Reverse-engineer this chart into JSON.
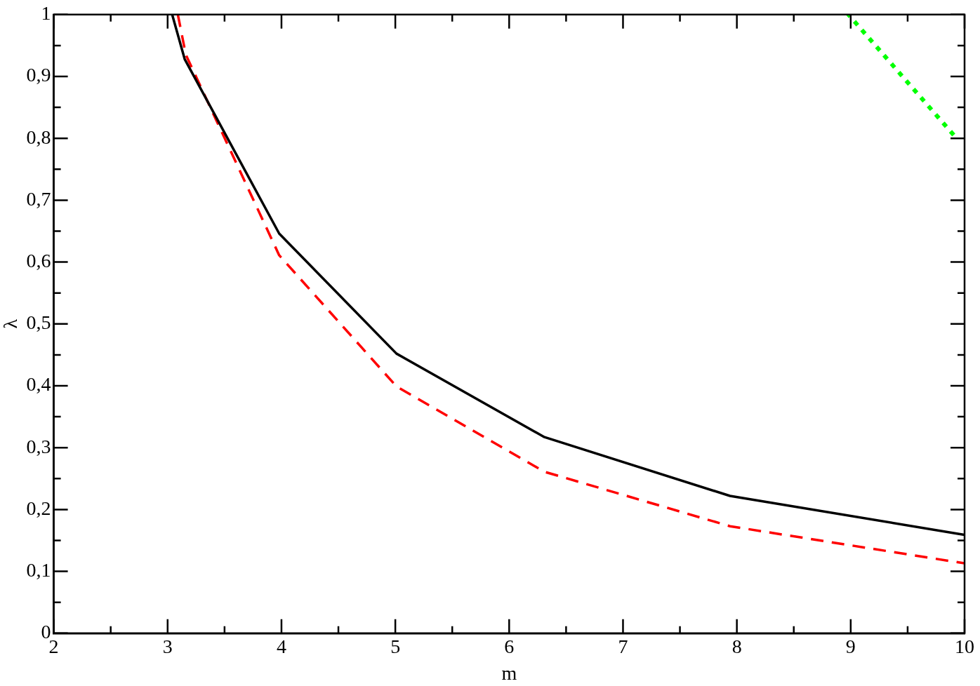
{
  "chart_data": {
    "type": "line",
    "xlabel": "m",
    "ylabel": "λ",
    "xlim": [
      2,
      10
    ],
    "ylim": [
      0,
      1
    ],
    "xticks": [
      2,
      {
        "value": 2.5,
        "label": null
      },
      3,
      {
        "value": 3.5,
        "label": null
      },
      4,
      {
        "value": 4.5,
        "label": null
      },
      5,
      {
        "value": 5.5,
        "label": null
      },
      6,
      {
        "value": 6.5,
        "label": null
      },
      7,
      {
        "value": 7.5,
        "label": null
      },
      8,
      {
        "value": 8.5,
        "label": null
      },
      9,
      {
        "value": 9.5,
        "label": null
      },
      10
    ],
    "yticks": [
      0,
      {
        "value": 0.05,
        "label": null
      },
      {
        "value": 0.1,
        "label": "0,1"
      },
      {
        "value": 0.15,
        "label": null
      },
      {
        "value": 0.2,
        "label": "0,2"
      },
      {
        "value": 0.25,
        "label": null
      },
      {
        "value": 0.3,
        "label": "0,3"
      },
      {
        "value": 0.35,
        "label": null
      },
      {
        "value": 0.4,
        "label": "0,4"
      },
      {
        "value": 0.45,
        "label": null
      },
      {
        "value": 0.5,
        "label": "0,5"
      },
      {
        "value": 0.55,
        "label": null
      },
      {
        "value": 0.6,
        "label": "0,6"
      },
      {
        "value": 0.65,
        "label": null
      },
      {
        "value": 0.7,
        "label": "0,7"
      },
      {
        "value": 0.75,
        "label": null
      },
      {
        "value": 0.8,
        "label": "0,8"
      },
      {
        "value": 0.85,
        "label": null
      },
      {
        "value": 0.9,
        "label": "0,9"
      },
      {
        "value": 0.95,
        "label": null
      },
      1
    ],
    "grid": false,
    "legend": false,
    "marker": "none",
    "series": [
      {
        "color": "#000000",
        "line_style": "solid",
        "x": [
          3.04,
          3.15,
          3.98,
          5.01,
          6.31,
          7.94,
          10
        ],
        "values": [
          1.0,
          0.928,
          0.646,
          0.452,
          0.317,
          0.222,
          0.159
        ]
      },
      {
        "color": "#ff0000",
        "line_style": "dashed",
        "x": [
          3.09,
          3.16,
          3.98,
          5.01,
          6.31,
          7.94,
          10
        ],
        "values": [
          1.0,
          0.935,
          0.611,
          0.399,
          0.261,
          0.173,
          0.113
        ]
      },
      {
        "color": "#00ff00",
        "line_style": "dotted",
        "x": [
          8.98,
          9.93
        ],
        "values": [
          1.0,
          0.8
        ]
      }
    ]
  }
}
